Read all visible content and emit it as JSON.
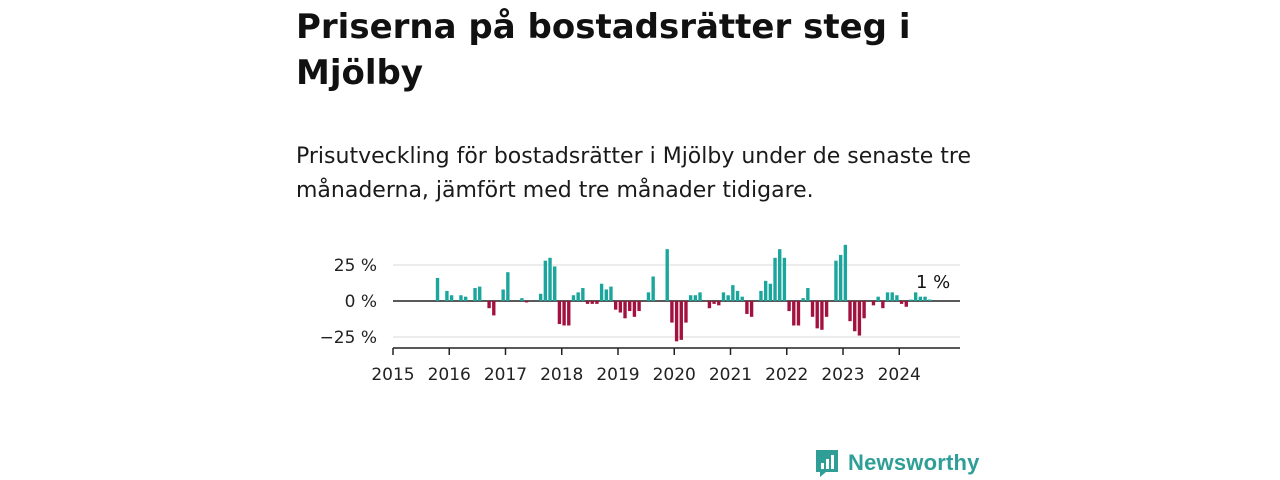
{
  "header": {
    "title": "Priserna på bostadsrätter steg i Mjölby",
    "subtitle": "Prisutveckling för bostadsrätter i Mjölby under de senaste tre månaderna, jämfört med tre månader tidigare."
  },
  "brand": {
    "name": "Newsworthy",
    "color": "#2f9e96"
  },
  "colors": {
    "positive": "#1aa69c",
    "negative": "#a3123f",
    "grid": "#d9d9d9",
    "axis": "#222222"
  },
  "chart_data": {
    "type": "bar",
    "x_unit": "month",
    "xlim": [
      "2015-01",
      "2024-12"
    ],
    "ylim": [
      -32,
      40
    ],
    "yticks": [
      25,
      0,
      -25
    ],
    "ytick_labels": [
      "25 %",
      "0 %",
      "−25 %"
    ],
    "xtick_labels": [
      "2015",
      "2016",
      "2017",
      "2018",
      "2019",
      "2020",
      "2021",
      "2022",
      "2023",
      "2024"
    ],
    "last_value_label": "1 %",
    "grid": true,
    "legend": false,
    "values": [
      {
        "x": "2015-10",
        "y": 16
      },
      {
        "x": "2015-12",
        "y": 7
      },
      {
        "x": "2016-01",
        "y": 4
      },
      {
        "x": "2016-03",
        "y": 4
      },
      {
        "x": "2016-04",
        "y": 3
      },
      {
        "x": "2016-06",
        "y": 9
      },
      {
        "x": "2016-07",
        "y": 10
      },
      {
        "x": "2016-09",
        "y": -5
      },
      {
        "x": "2016-10",
        "y": -10
      },
      {
        "x": "2016-12",
        "y": 8
      },
      {
        "x": "2017-01",
        "y": 20
      },
      {
        "x": "2017-04",
        "y": 2
      },
      {
        "x": "2017-05",
        "y": -1
      },
      {
        "x": "2017-08",
        "y": 5
      },
      {
        "x": "2017-09",
        "y": 28
      },
      {
        "x": "2017-10",
        "y": 30
      },
      {
        "x": "2017-11",
        "y": 24
      },
      {
        "x": "2017-12",
        "y": -16
      },
      {
        "x": "2018-01",
        "y": -17
      },
      {
        "x": "2018-02",
        "y": -17
      },
      {
        "x": "2018-03",
        "y": 4
      },
      {
        "x": "2018-04",
        "y": 6
      },
      {
        "x": "2018-05",
        "y": 9
      },
      {
        "x": "2018-06",
        "y": -2
      },
      {
        "x": "2018-07",
        "y": -2
      },
      {
        "x": "2018-08",
        "y": -2
      },
      {
        "x": "2018-09",
        "y": 12
      },
      {
        "x": "2018-10",
        "y": 8
      },
      {
        "x": "2018-11",
        "y": 10
      },
      {
        "x": "2018-12",
        "y": -6
      },
      {
        "x": "2019-01",
        "y": -8
      },
      {
        "x": "2019-02",
        "y": -12
      },
      {
        "x": "2019-03",
        "y": -7
      },
      {
        "x": "2019-04",
        "y": -11
      },
      {
        "x": "2019-05",
        "y": -7
      },
      {
        "x": "2019-07",
        "y": 6
      },
      {
        "x": "2019-08",
        "y": 17
      },
      {
        "x": "2019-11",
        "y": 36
      },
      {
        "x": "2019-12",
        "y": -15
      },
      {
        "x": "2020-01",
        "y": -28
      },
      {
        "x": "2020-02",
        "y": -27
      },
      {
        "x": "2020-03",
        "y": -15
      },
      {
        "x": "2020-04",
        "y": 4
      },
      {
        "x": "2020-05",
        "y": 4
      },
      {
        "x": "2020-06",
        "y": 6
      },
      {
        "x": "2020-08",
        "y": -5
      },
      {
        "x": "2020-09",
        "y": -2
      },
      {
        "x": "2020-10",
        "y": -3
      },
      {
        "x": "2020-11",
        "y": 6
      },
      {
        "x": "2020-12",
        "y": 4
      },
      {
        "x": "2021-01",
        "y": 11
      },
      {
        "x": "2021-02",
        "y": 7
      },
      {
        "x": "2021-03",
        "y": 3
      },
      {
        "x": "2021-04",
        "y": -9
      },
      {
        "x": "2021-05",
        "y": -11
      },
      {
        "x": "2021-07",
        "y": 7
      },
      {
        "x": "2021-08",
        "y": 14
      },
      {
        "x": "2021-09",
        "y": 12
      },
      {
        "x": "2021-10",
        "y": 30
      },
      {
        "x": "2021-11",
        "y": 36
      },
      {
        "x": "2021-12",
        "y": 30
      },
      {
        "x": "2022-01",
        "y": -7
      },
      {
        "x": "2022-02",
        "y": -17
      },
      {
        "x": "2022-03",
        "y": -17
      },
      {
        "x": "2022-04",
        "y": 2
      },
      {
        "x": "2022-05",
        "y": 9
      },
      {
        "x": "2022-06",
        "y": -11
      },
      {
        "x": "2022-07",
        "y": -19
      },
      {
        "x": "2022-08",
        "y": -20
      },
      {
        "x": "2022-09",
        "y": -11
      },
      {
        "x": "2022-11",
        "y": 28
      },
      {
        "x": "2022-12",
        "y": 32
      },
      {
        "x": "2023-01",
        "y": 39
      },
      {
        "x": "2023-02",
        "y": -14
      },
      {
        "x": "2023-03",
        "y": -21
      },
      {
        "x": "2023-04",
        "y": -24
      },
      {
        "x": "2023-05",
        "y": -12
      },
      {
        "x": "2023-07",
        "y": -3
      },
      {
        "x": "2023-08",
        "y": 3
      },
      {
        "x": "2023-09",
        "y": -5
      },
      {
        "x": "2023-10",
        "y": 6
      },
      {
        "x": "2023-11",
        "y": 6
      },
      {
        "x": "2023-12",
        "y": 4
      },
      {
        "x": "2024-01",
        "y": -2
      },
      {
        "x": "2024-02",
        "y": -4
      },
      {
        "x": "2024-03",
        "y": 1
      },
      {
        "x": "2024-04",
        "y": 6
      },
      {
        "x": "2024-05",
        "y": 3
      },
      {
        "x": "2024-06",
        "y": 3
      },
      {
        "x": "2024-07",
        "y": 1
      }
    ]
  }
}
